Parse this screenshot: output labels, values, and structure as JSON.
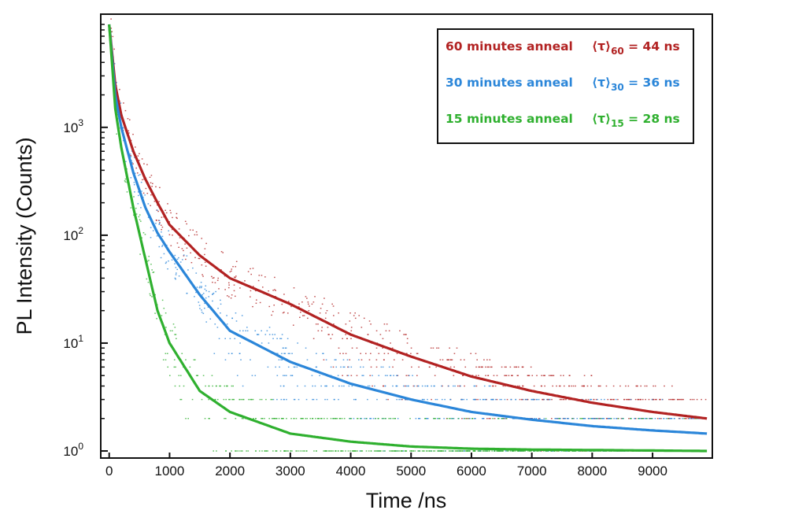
{
  "chart_data": {
    "type": "scatter",
    "xlabel": "Time /ns",
    "ylabel": "PL Intensity (Counts)",
    "xlim": [
      -140,
      9990
    ],
    "ylim": [
      0.86,
      11200
    ],
    "yscale": "log",
    "grid": false,
    "legend_position": "top-right",
    "x_ticks": [
      "0",
      "1000",
      "2000",
      "3000",
      "4000",
      "5000",
      "6000",
      "7000",
      "8000",
      "9000"
    ],
    "y_ticks": [
      {
        "base": "10",
        "exp": "0"
      },
      {
        "base": "10",
        "exp": "1"
      },
      {
        "base": "10",
        "exp": "2"
      },
      {
        "base": "10",
        "exp": "3"
      }
    ],
    "x": [
      0,
      100,
      200,
      400,
      600,
      800,
      1000,
      1500,
      2000,
      3000,
      4000,
      5000,
      6000,
      7000,
      8000,
      9000,
      9900
    ],
    "series": [
      {
        "name": "60 minutes anneal",
        "annotation": "⟨τ⟩",
        "sub": "60",
        "value_text": " = 44 ns",
        "color": "#b22222",
        "values": [
          9000,
          2500,
          1300,
          600,
          330,
          200,
          125,
          65,
          40,
          23,
          12,
          7.5,
          4.9,
          3.6,
          2.8,
          2.3,
          2.0
        ]
      },
      {
        "name": "30 minutes anneal",
        "annotation": "⟨τ⟩",
        "sub": "30",
        "value_text": " = 36 ns",
        "color": "#2b86d9",
        "values": [
          9000,
          2000,
          1000,
          380,
          180,
          105,
          70,
          28,
          13,
          6.7,
          4.2,
          3.0,
          2.3,
          1.95,
          1.7,
          1.55,
          1.45
        ]
      },
      {
        "name": "15 minutes anneal",
        "annotation": "⟨τ⟩",
        "sub": "15",
        "value_text": " = 28 ns",
        "color": "#2fb02f",
        "values": [
          9000,
          1500,
          650,
          180,
          60,
          20,
          10,
          3.6,
          2.3,
          1.45,
          1.22,
          1.1,
          1.05,
          1.03,
          1.02,
          1.01,
          1.0
        ]
      }
    ]
  }
}
